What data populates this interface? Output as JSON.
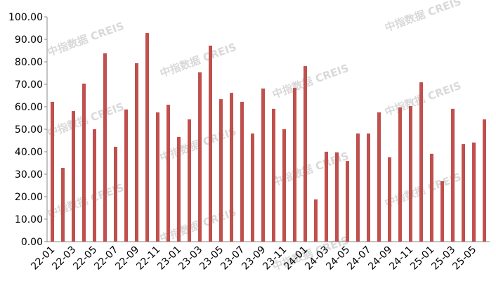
{
  "chart_data": {
    "type": "bar",
    "watermark": "中指数据 CREIS",
    "categories": [
      "22-01",
      null,
      "22-03",
      null,
      "22-05",
      null,
      "22-07",
      null,
      "22-09",
      null,
      "22-11",
      null,
      "23-01",
      null,
      "23-03",
      null,
      "23-05",
      null,
      "23-07",
      null,
      "23-09",
      null,
      "23-11",
      null,
      "24-01",
      null,
      "24-03",
      null,
      "24-05",
      null,
      "24-07",
      null,
      "24-09",
      null,
      "24-11",
      null,
      "25-01",
      null,
      "25-03",
      null,
      "25-05",
      null
    ],
    "values": [
      62.2,
      32.8,
      58.1,
      70.3,
      50.0,
      83.8,
      42.2,
      58.8,
      79.4,
      92.8,
      57.5,
      60.9,
      46.6,
      54.4,
      75.3,
      87.2,
      63.4,
      66.2,
      62.2,
      48.1,
      68.1,
      59.1,
      50.0,
      68.4,
      78.1,
      18.8,
      40.0,
      39.7,
      35.9,
      48.1,
      48.1,
      57.5,
      37.5,
      59.7,
      60.3,
      70.9,
      39.1,
      26.9,
      59.1,
      43.4,
      44.1,
      54.4
    ],
    "color": "#c0504d",
    "ylim": [
      0,
      100
    ],
    "yticks": [
      {
        "value": 0,
        "label": "0.00"
      },
      {
        "value": 10,
        "label": "10.00"
      },
      {
        "value": 20,
        "label": "20.00"
      },
      {
        "value": 30,
        "label": "30.00"
      },
      {
        "value": 40,
        "label": "40.00"
      },
      {
        "value": 50,
        "label": "50.00"
      },
      {
        "value": 60,
        "label": "60.00"
      },
      {
        "value": 70,
        "label": "70.00"
      },
      {
        "value": 80,
        "label": "80.00"
      },
      {
        "value": 90,
        "label": "90.00"
      },
      {
        "value": 100,
        "label": "100.00"
      }
    ],
    "grid": false
  }
}
